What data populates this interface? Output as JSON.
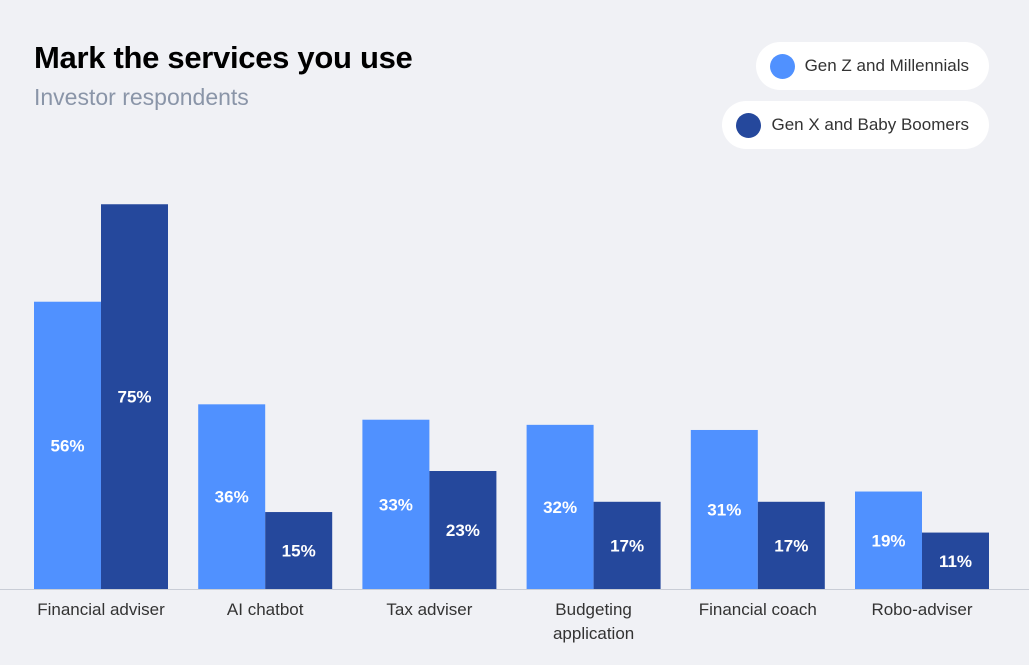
{
  "chart_data": {
    "type": "bar",
    "title": "Mark the services you use",
    "subtitle": "Investor respondents",
    "xlabel": "",
    "ylabel": "",
    "ylim": [
      0,
      100
    ],
    "categories": [
      [
        "Financial adviser"
      ],
      [
        "AI chatbot"
      ],
      [
        "Tax adviser"
      ],
      [
        "Budgeting",
        "application"
      ],
      [
        "Financial coach"
      ],
      [
        "Robo-adviser"
      ]
    ],
    "series": [
      {
        "name": "Gen Z and Millennials",
        "color": "#5091ff",
        "values": [
          56,
          36,
          33,
          32,
          31,
          19
        ],
        "labels": [
          "56%",
          "36%",
          "33%",
          "32%",
          "31%",
          "19%"
        ]
      },
      {
        "name": "Gen X and Baby Boomers",
        "color": "#25489c",
        "values": [
          75,
          15,
          23,
          17,
          17,
          11
        ],
        "labels": [
          "75%",
          "15%",
          "23%",
          "17%",
          "17%",
          "11%"
        ]
      }
    ],
    "legend_position": "top-right",
    "grid": false
  }
}
